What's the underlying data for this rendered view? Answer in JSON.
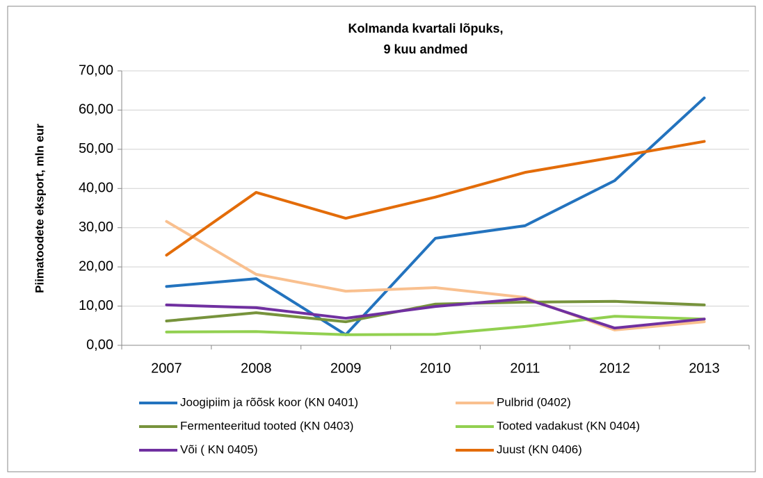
{
  "chart_data": {
    "type": "line",
    "title": [
      "Kolmanda kvartali lõpuks,",
      "9 kuu andmed"
    ],
    "y_label": "Piimatoodete eksport, mln eur",
    "categories": [
      "2007",
      "2008",
      "2009",
      "2010",
      "2011",
      "2012",
      "2013"
    ],
    "ylim": [
      0,
      70
    ],
    "yticks": [
      {
        "value": 0,
        "label": "0,00"
      },
      {
        "value": 10,
        "label": "10,00"
      },
      {
        "value": 20,
        "label": "20,00"
      },
      {
        "value": 30,
        "label": "30,00"
      },
      {
        "value": 40,
        "label": "40,00"
      },
      {
        "value": 50,
        "label": "50,00"
      },
      {
        "value": 60,
        "label": "60,00"
      },
      {
        "value": 70,
        "label": "70,00"
      }
    ],
    "grid": true,
    "legend": "bottom",
    "series": [
      {
        "name": "Joogipiim ja rõõsk koor (KN 0401)",
        "color": "#2373be",
        "values": [
          15,
          17,
          2.7,
          27.3,
          30.5,
          42,
          63.1
        ]
      },
      {
        "name": "Pulbrid (0402)",
        "color": "#f9c08f",
        "values": [
          31.6,
          18.1,
          13.8,
          14.7,
          12.2,
          3.9,
          6
        ]
      },
      {
        "name": "Fermenteeritud tooted (KN 0403)",
        "color": "#77933c",
        "values": [
          6.2,
          8.3,
          6,
          10.5,
          11,
          11.2,
          10.3
        ]
      },
      {
        "name": "Tooted vadakust (KN 0404)",
        "color": "#92d050",
        "values": [
          3.4,
          3.5,
          2.7,
          2.8,
          4.8,
          7.4,
          6.7
        ]
      },
      {
        "name": "Või ( KN 0405)",
        "color": "#7030a0",
        "values": [
          10.3,
          9.6,
          6.9,
          9.9,
          11.9,
          4.4,
          6.7
        ]
      },
      {
        "name": "Juust (KN 0406)",
        "color": "#e36c09",
        "values": [
          23,
          39,
          32.4,
          37.8,
          44.1,
          48,
          52
        ]
      }
    ]
  }
}
